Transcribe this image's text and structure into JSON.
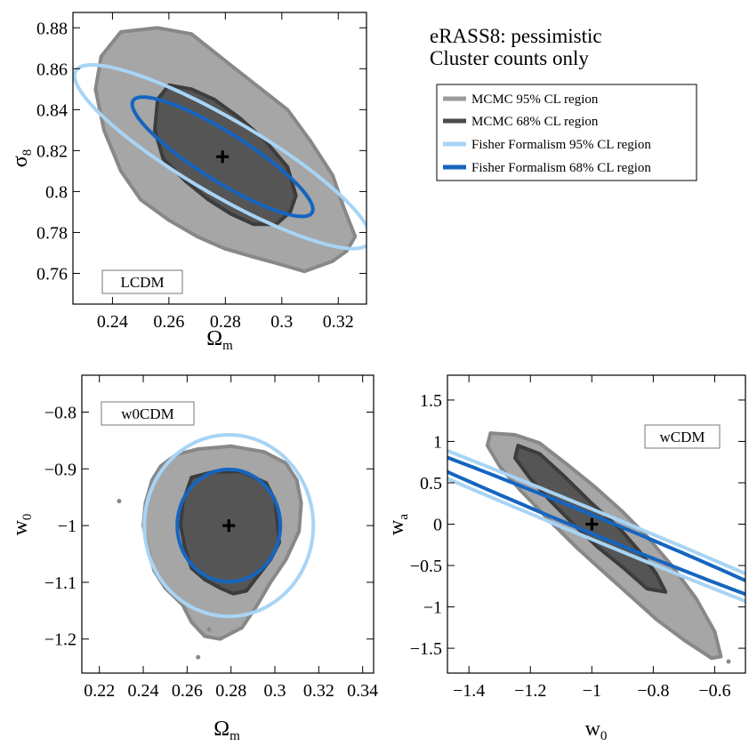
{
  "figure_title": [
    "eRASS8: pessimistic",
    "Cluster counts only"
  ],
  "legend": [
    {
      "label": "MCMC 95% CL region",
      "color": "#9a9a9a"
    },
    {
      "label": "MCMC 68% CL region",
      "color": "#4a4a4a"
    },
    {
      "label": "Fisher Formalism 95% CL region",
      "color": "#a8d4f5"
    },
    {
      "label": "Fisher Formalism 68% CL region",
      "color": "#1565c0"
    }
  ],
  "colors": {
    "mcmc95_fill": "#a6a6a6",
    "mcmc95_edge": "#888888",
    "mcmc68_fill": "#555555",
    "mcmc68_edge": "#3c3c3c",
    "fisher95": "#a8d4f5",
    "fisher68": "#1565c0"
  },
  "chart_data": [
    {
      "type": "scatter",
      "id": "lcdm",
      "model_label": "LCDM",
      "xlabel": {
        "main": "Ω",
        "sub": "m"
      },
      "ylabel": {
        "main": "σ",
        "sub": "8"
      },
      "xlim": [
        0.226,
        0.33
      ],
      "ylim": [
        0.745,
        0.8875
      ],
      "xticks": [
        0.24,
        0.26,
        0.28,
        0.3,
        0.32
      ],
      "xtick_labels": [
        "0.24",
        "0.26",
        "0.28",
        "0.3",
        "0.32"
      ],
      "yticks": [
        0.76,
        0.78,
        0.8,
        0.82,
        0.84,
        0.86,
        0.88
      ],
      "ytick_labels": [
        "0.76",
        "0.78",
        "0.8",
        "0.82",
        "0.84",
        "0.86",
        "0.88"
      ],
      "fiducial": [
        0.279,
        0.817
      ],
      "fisher95": {
        "center": [
          0.279,
          0.817
        ],
        "a": 0.067,
        "b": 0.0165,
        "angle_deg": -40
      },
      "fisher68": {
        "center": [
          0.279,
          0.817
        ],
        "a": 0.042,
        "b": 0.0105,
        "angle_deg": -42
      },
      "mcmc95": [
        [
          0.243,
          0.878
        ],
        [
          0.256,
          0.88
        ],
        [
          0.268,
          0.877
        ],
        [
          0.278,
          0.866
        ],
        [
          0.29,
          0.853
        ],
        [
          0.302,
          0.84
        ],
        [
          0.31,
          0.825
        ],
        [
          0.318,
          0.808
        ],
        [
          0.322,
          0.792
        ],
        [
          0.326,
          0.778
        ],
        [
          0.323,
          0.771
        ],
        [
          0.318,
          0.766
        ],
        [
          0.308,
          0.761
        ],
        [
          0.298,
          0.765
        ],
        [
          0.29,
          0.768
        ],
        [
          0.28,
          0.772
        ],
        [
          0.27,
          0.778
        ],
        [
          0.26,
          0.786
        ],
        [
          0.25,
          0.796
        ],
        [
          0.243,
          0.81
        ],
        [
          0.237,
          0.83
        ],
        [
          0.234,
          0.85
        ],
        [
          0.236,
          0.866
        ]
      ],
      "mcmc68": [
        [
          0.26,
          0.852
        ],
        [
          0.268,
          0.85
        ],
        [
          0.276,
          0.845
        ],
        [
          0.285,
          0.836
        ],
        [
          0.294,
          0.825
        ],
        [
          0.302,
          0.812
        ],
        [
          0.305,
          0.798
        ],
        [
          0.303,
          0.79
        ],
        [
          0.298,
          0.784
        ],
        [
          0.29,
          0.784
        ],
        [
          0.282,
          0.789
        ],
        [
          0.274,
          0.796
        ],
        [
          0.266,
          0.805
        ],
        [
          0.258,
          0.816
        ],
        [
          0.255,
          0.83
        ],
        [
          0.256,
          0.845
        ]
      ]
    },
    {
      "type": "scatter",
      "id": "w0cdm",
      "model_label": "w0CDM",
      "xlabel": {
        "main": "Ω",
        "sub": "m"
      },
      "ylabel": {
        "main": "w",
        "sub": "0"
      },
      "xlim": [
        0.212,
        0.345
      ],
      "ylim": [
        -1.26,
        -0.735
      ],
      "xticks": [
        0.22,
        0.24,
        0.26,
        0.28,
        0.3,
        0.32,
        0.34
      ],
      "xtick_labels": [
        "0.22",
        "0.24",
        "0.26",
        "0.28",
        "0.3",
        "0.32",
        "0.34"
      ],
      "yticks": [
        -1.2,
        -1.1,
        -1.0,
        -0.9,
        -0.8
      ],
      "ytick_labels": [
        "−1.2",
        "−1.1",
        "−1",
        "−0.9",
        "−0.8"
      ],
      "fiducial": [
        0.279,
        -1.0
      ],
      "fisher95": {
        "center": [
          0.279,
          -1.0
        ],
        "a": 0.0385,
        "b": 0.16,
        "angle_deg": 0
      },
      "fisher68": {
        "center": [
          0.279,
          -1.0
        ],
        "a": 0.0235,
        "b": 0.099,
        "angle_deg": 0
      },
      "mcmc95": [
        [
          0.255,
          -0.875
        ],
        [
          0.265,
          -0.865
        ],
        [
          0.28,
          -0.86
        ],
        [
          0.295,
          -0.87
        ],
        [
          0.305,
          -0.89
        ],
        [
          0.31,
          -0.92
        ],
        [
          0.312,
          -0.96
        ],
        [
          0.311,
          -1.01
        ],
        [
          0.305,
          -1.06
        ],
        [
          0.298,
          -1.1
        ],
        [
          0.292,
          -1.14
        ],
        [
          0.285,
          -1.18
        ],
        [
          0.275,
          -1.2
        ],
        [
          0.268,
          -1.195
        ],
        [
          0.262,
          -1.17
        ],
        [
          0.258,
          -1.14
        ],
        [
          0.25,
          -1.11
        ],
        [
          0.245,
          -1.08
        ],
        [
          0.242,
          -1.04
        ],
        [
          0.24,
          -1.0
        ],
        [
          0.241,
          -0.96
        ],
        [
          0.244,
          -0.92
        ],
        [
          0.248,
          -0.895
        ]
      ],
      "mcmc68": [
        [
          0.262,
          -0.915
        ],
        [
          0.272,
          -0.905
        ],
        [
          0.285,
          -0.905
        ],
        [
          0.296,
          -0.925
        ],
        [
          0.3,
          -0.955
        ],
        [
          0.301,
          -0.99
        ],
        [
          0.302,
          -1.03
        ],
        [
          0.298,
          -1.06
        ],
        [
          0.292,
          -1.09
        ],
        [
          0.287,
          -1.115
        ],
        [
          0.281,
          -1.12
        ],
        [
          0.275,
          -1.11
        ],
        [
          0.268,
          -1.095
        ],
        [
          0.262,
          -1.075
        ],
        [
          0.259,
          -1.04
        ],
        [
          0.257,
          -1.0
        ],
        [
          0.258,
          -0.96
        ]
      ],
      "speckles": [
        [
          0.229,
          -0.957
        ],
        [
          0.27,
          -1.183
        ],
        [
          0.265,
          -1.232
        ]
      ]
    },
    {
      "type": "scatter",
      "id": "wcdm",
      "model_label": "wCDM",
      "xlabel": {
        "main": "w",
        "sub": "0"
      },
      "ylabel": {
        "main": "w",
        "sub": "a"
      },
      "xlim": [
        -1.47,
        -0.5
      ],
      "ylim": [
        -1.8,
        1.8
      ],
      "xticks": [
        -1.4,
        -1.2,
        -1.0,
        -0.8,
        -0.6
      ],
      "xtick_labels": [
        "−1.4",
        "−1.2",
        "−1",
        "−0.8",
        "−0.6"
      ],
      "yticks": [
        -1.5,
        -1.0,
        -0.5,
        0.0,
        0.5,
        1.0,
        1.5
      ],
      "ytick_labels": [
        "−1.5",
        "−1",
        "−0.5",
        "0",
        "0.5",
        "1",
        "1.5"
      ],
      "fiducial": [
        -1.0,
        0.0
      ],
      "fisher95": {
        "center": [
          -1.0,
          0.0
        ],
        "a": 2.23,
        "b": 0.1,
        "angle_deg": -57
      },
      "fisher68": {
        "center": [
          -1.0,
          0.0
        ],
        "a": 1.33,
        "b": 0.062,
        "angle_deg": -57
      },
      "mcmc95": [
        [
          -1.33,
          1.1
        ],
        [
          -1.25,
          1.08
        ],
        [
          -1.17,
          0.98
        ],
        [
          -1.08,
          0.72
        ],
        [
          -0.99,
          0.45
        ],
        [
          -0.9,
          0.15
        ],
        [
          -0.82,
          -0.15
        ],
        [
          -0.74,
          -0.5
        ],
        [
          -0.66,
          -0.9
        ],
        [
          -0.6,
          -1.3
        ],
        [
          -0.58,
          -1.6
        ],
        [
          -0.61,
          -1.62
        ],
        [
          -0.7,
          -1.4
        ],
        [
          -0.79,
          -1.15
        ],
        [
          -0.88,
          -0.85
        ],
        [
          -0.97,
          -0.55
        ],
        [
          -1.05,
          -0.28
        ],
        [
          -1.14,
          0.05
        ],
        [
          -1.23,
          0.4
        ],
        [
          -1.3,
          0.7
        ],
        [
          -1.34,
          0.95
        ]
      ],
      "mcmc68": [
        [
          -1.24,
          0.95
        ],
        [
          -1.17,
          0.85
        ],
        [
          -1.09,
          0.58
        ],
        [
          -1.0,
          0.25
        ],
        [
          -0.91,
          -0.05
        ],
        [
          -0.84,
          -0.35
        ],
        [
          -0.79,
          -0.6
        ],
        [
          -0.76,
          -0.82
        ],
        [
          -0.82,
          -0.78
        ],
        [
          -0.9,
          -0.52
        ],
        [
          -0.98,
          -0.28
        ],
        [
          -1.06,
          0.0
        ],
        [
          -1.14,
          0.3
        ],
        [
          -1.2,
          0.55
        ],
        [
          -1.25,
          0.8
        ]
      ],
      "speckles": [
        [
          -0.555,
          -1.66
        ]
      ]
    }
  ]
}
